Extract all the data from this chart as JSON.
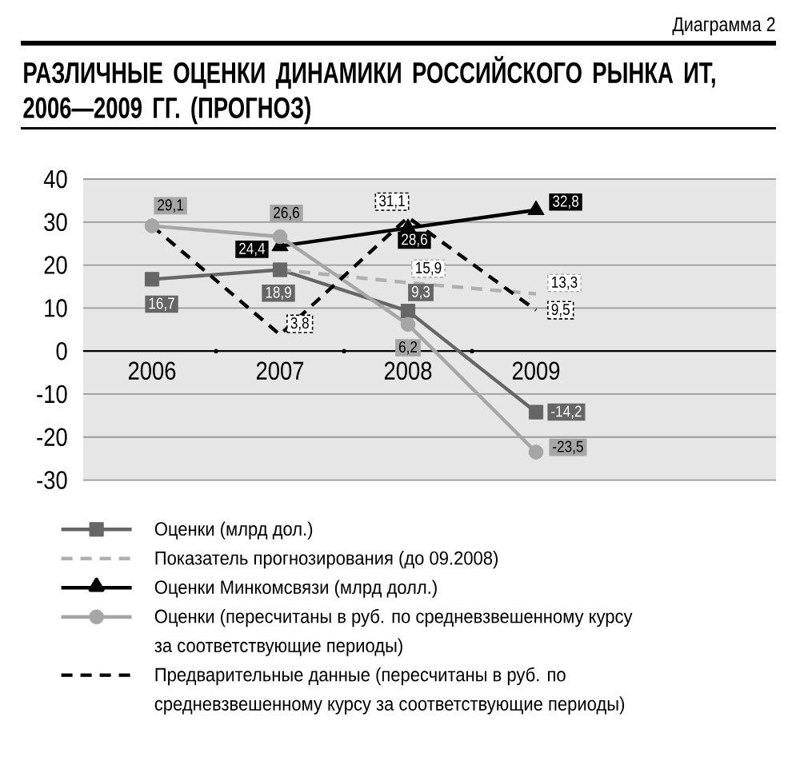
{
  "chart_data": {
    "type": "line",
    "title": "РАЗЛИЧНЫЕ ОЦЕНКИ ДИНАМИКИ РОССИЙСКОГО РЫНКА ИТ, 2006—2009 ГГ. (ПРОГНОЗ)",
    "annotations": [
      "Диаграмма 2"
    ],
    "categories": [
      "2006",
      "2007",
      "2008",
      "2009"
    ],
    "ylim": [
      -30,
      40
    ],
    "yticks": [
      -30,
      -20,
      -10,
      0,
      10,
      20,
      30,
      40
    ],
    "grid": "y",
    "legend": "bottom",
    "series": [
      {
        "name": "Оценки (млрд дол.)",
        "color": "#666666",
        "marker": "square",
        "line_style": "solid",
        "values": [
          16.7,
          18.9,
          9.3,
          -14.2
        ],
        "value_labels": [
          "16,7",
          "18,9",
          "9,3",
          "-14,2"
        ]
      },
      {
        "name": "Показатель прогнозирования (до 09.2008)",
        "color": "#b0b0b0",
        "marker": "none",
        "line_style": "dashed",
        "values": [
          null,
          18.9,
          15.9,
          13.3
        ],
        "value_labels": [
          null,
          null,
          "15,9",
          "13,3"
        ]
      },
      {
        "name": "Оценки Минкомсвязи (млрд долл.)",
        "color": "#000000",
        "marker": "triangle",
        "line_style": "solid",
        "values": [
          null,
          24.4,
          28.6,
          32.8
        ],
        "value_labels": [
          null,
          "24,4",
          "28,6",
          "32,8"
        ]
      },
      {
        "name": "Оценки (пересчитаны в руб. по средневзвешенному курсу за соответствующие периоды)",
        "color": "#a6a6a6",
        "marker": "circle",
        "line_style": "solid",
        "values": [
          29.1,
          26.6,
          6.2,
          -23.5
        ],
        "value_labels": [
          "29,1",
          "26,6",
          "6,2",
          "-23,5"
        ]
      },
      {
        "name": "Предварительные данные (пересчитаны в руб. по средневзвешенному курсу за соответствующие периоды)",
        "color": "#000000",
        "marker": "none",
        "line_style": "dashed",
        "values": [
          29.1,
          3.8,
          31.1,
          9.5
        ],
        "value_labels": [
          null,
          "3,8",
          "31,1",
          "9,5"
        ]
      }
    ]
  }
}
